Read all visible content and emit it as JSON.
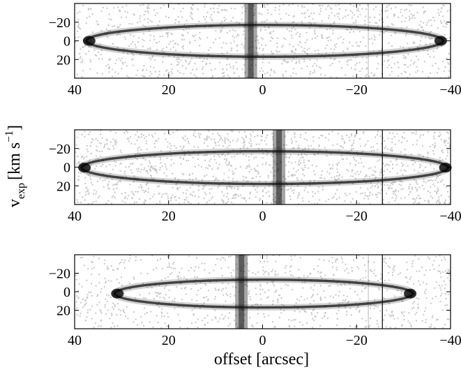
{
  "chart_data": {
    "type": "heatmap",
    "subtype": "position-velocity diagrams (greyscale images)",
    "xlabel": "offset [arcsec]",
    "ylabel": {
      "base": "v",
      "subscript": "exp",
      "unit_open": "[km s",
      "unit_superscript": "−1",
      "unit_close": "]"
    },
    "colormap": "greyscale (dark = bright emission)",
    "panels": [
      {
        "xlim": [
          40,
          -40
        ],
        "ylim": [
          -40,
          40
        ],
        "y_inverted": true,
        "x_ticks": [
          "40",
          "20",
          "0",
          "−20",
          "−40"
        ],
        "y_ticks": [
          "−20",
          "0",
          "20"
        ],
        "ellipse": {
          "x_extent": [
            37.5,
            -38.5
          ],
          "v_extent": [
            -17,
            17
          ]
        },
        "vertical_bands": [
          {
            "offset": 2.5
          }
        ],
        "vertical_lines": [
          {
            "offset": -25.5
          },
          {
            "offset": -22.5
          }
        ],
        "noise_level": 0.35
      },
      {
        "xlim": [
          40,
          -40
        ],
        "ylim": [
          -40,
          40
        ],
        "y_inverted": true,
        "x_ticks": [
          "40",
          "20",
          "0",
          "−20",
          "−40"
        ],
        "y_ticks": [
          "−20",
          "0",
          "20"
        ],
        "ellipse": {
          "x_extent": [
            38.5,
            -39.5
          ],
          "v_extent": [
            -17,
            18
          ]
        },
        "vertical_bands": [
          {
            "offset": -3.5
          }
        ],
        "vertical_lines": [
          {
            "offset": -25.5
          }
        ],
        "noise_level": 0.45
      },
      {
        "xlim": [
          40,
          -40
        ],
        "ylim": [
          -40,
          40
        ],
        "y_inverted": true,
        "x_ticks": [
          "40",
          "20",
          "0",
          "−20",
          "−40"
        ],
        "y_ticks": [
          "−20",
          "0",
          "20"
        ],
        "ellipse": {
          "x_extent": [
            31.5,
            -32
          ],
          "v_extent": [
            -13,
            17
          ]
        },
        "vertical_bands": [
          {
            "offset": 4.5
          }
        ],
        "vertical_lines": [
          {
            "offset": -25.5
          },
          {
            "offset": -22.5
          }
        ],
        "noise_level": 0.28
      }
    ]
  }
}
